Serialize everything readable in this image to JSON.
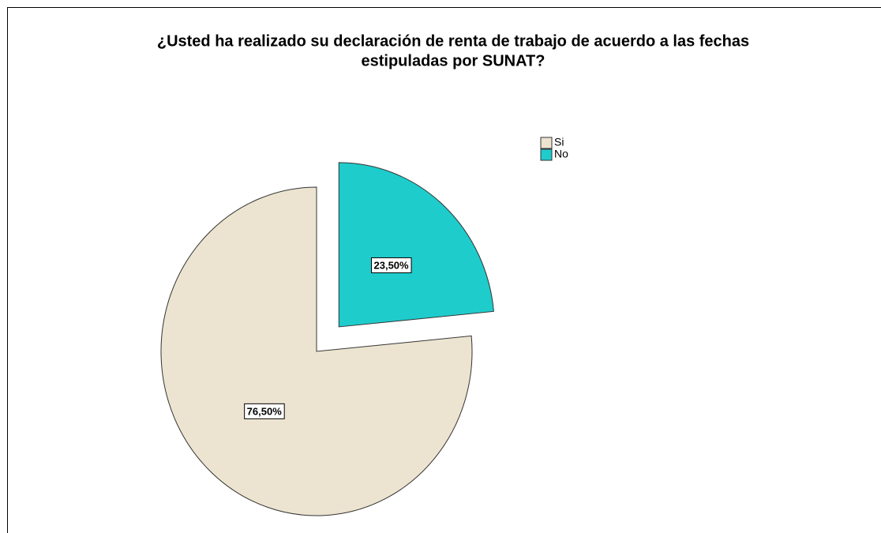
{
  "chart_data": {
    "type": "pie",
    "title": [
      "¿Usted ha realizado su declaración de renta de trabajo de acuerdo a las fechas",
      "estipuladas por SUNAT?"
    ],
    "categories": [
      "Si",
      "No"
    ],
    "values": [
      76.5,
      23.5
    ],
    "value_labels": [
      "76,50%",
      "23,50%"
    ],
    "colors": [
      "#ece4d0",
      "#1fcccc"
    ],
    "legend": "top-right"
  }
}
